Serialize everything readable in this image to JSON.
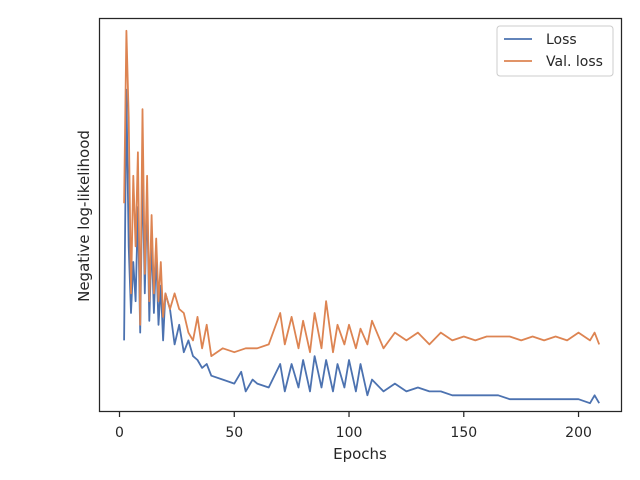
{
  "chart_data": {
    "type": "line",
    "title": "",
    "xlabel": "Epochs",
    "ylabel": "Negative log-likelihood",
    "xlim": [
      -8.5,
      218.5
    ],
    "ylim": [
      0,
      100
    ],
    "y_ticks_shown": false,
    "x_ticks": [
      0,
      50,
      100,
      150,
      200
    ],
    "x_tick_labels": [
      "0",
      "50",
      "100",
      "150",
      "200"
    ],
    "grid": false,
    "legend_position": "top-right",
    "series": [
      {
        "name": "Loss",
        "color": "#4c72b0",
        "x": [
          2,
          3,
          4,
          5,
          6,
          7,
          8,
          9,
          10,
          11,
          12,
          13,
          14,
          15,
          16,
          17,
          18,
          19,
          20,
          22,
          24,
          26,
          28,
          30,
          32,
          34,
          36,
          38,
          40,
          45,
          50,
          53,
          55,
          58,
          60,
          65,
          70,
          72,
          75,
          78,
          80,
          83,
          85,
          88,
          90,
          93,
          95,
          98,
          100,
          103,
          105,
          108,
          110,
          115,
          120,
          125,
          130,
          135,
          140,
          145,
          150,
          155,
          160,
          165,
          170,
          175,
          180,
          185,
          190,
          195,
          200,
          205,
          207,
          209
        ],
        "y": [
          18,
          82,
          42,
          25,
          38,
          28,
          52,
          20,
          62,
          30,
          55,
          23,
          44,
          25,
          40,
          22,
          32,
          18,
          30,
          26,
          17,
          22,
          15,
          18,
          14,
          13,
          11,
          12,
          9,
          8,
          7,
          10,
          5,
          8,
          7,
          6,
          12,
          5,
          12,
          6,
          13,
          5,
          14,
          6,
          13,
          5,
          12,
          6,
          13,
          5,
          12,
          4,
          8,
          5,
          7,
          5,
          6,
          5,
          5,
          4,
          4,
          4,
          4,
          4,
          3,
          3,
          3,
          3,
          3,
          3,
          3,
          2,
          4,
          2
        ]
      },
      {
        "name": "Val. loss",
        "color": "#dd8452",
        "x": [
          2,
          3,
          4,
          5,
          6,
          7,
          8,
          9,
          10,
          11,
          12,
          13,
          14,
          15,
          16,
          17,
          18,
          19,
          20,
          22,
          24,
          26,
          28,
          30,
          32,
          34,
          36,
          38,
          40,
          45,
          50,
          55,
          60,
          65,
          70,
          72,
          75,
          78,
          80,
          83,
          85,
          88,
          90,
          93,
          95,
          98,
          100,
          103,
          105,
          108,
          110,
          115,
          120,
          125,
          130,
          135,
          140,
          145,
          150,
          155,
          160,
          165,
          170,
          175,
          180,
          185,
          190,
          195,
          200,
          205,
          207,
          209
        ],
        "y": [
          53,
          97,
          75,
          30,
          60,
          42,
          66,
          22,
          77,
          35,
          60,
          28,
          50,
          30,
          44,
          28,
          38,
          24,
          30,
          26,
          30,
          26,
          25,
          20,
          18,
          24,
          16,
          22,
          14,
          16,
          15,
          16,
          16,
          17,
          25,
          17,
          24,
          16,
          23,
          15,
          25,
          16,
          28,
          15,
          22,
          17,
          22,
          16,
          21,
          17,
          23,
          16,
          20,
          18,
          20,
          17,
          20,
          18,
          19,
          18,
          19,
          19,
          19,
          18,
          19,
          18,
          19,
          18,
          20,
          18,
          20,
          17
        ]
      }
    ]
  }
}
